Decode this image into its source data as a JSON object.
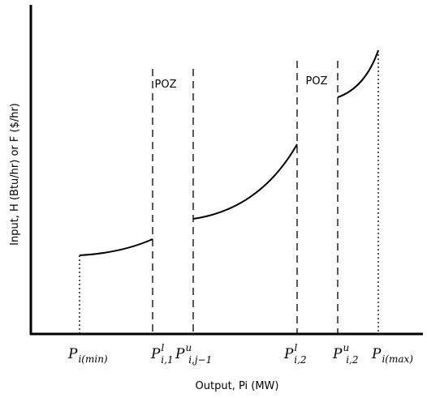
{
  "diagram": {
    "y_axis_label": "Input, H (Btu/hr) or F ($/hr)",
    "x_axis_label": "Output, Pi (MW)",
    "zone_labels": [
      "POZ",
      "POZ"
    ],
    "points": [
      {
        "base": "P",
        "sub": "i(min)"
      },
      {
        "base": "P",
        "sup": "l",
        "sub": "i,1"
      },
      {
        "base": "P",
        "sup": "u",
        "sub": "i,j−1"
      },
      {
        "base": "P",
        "sup": "l",
        "sub": "i,2"
      },
      {
        "base": "P",
        "sup": "u",
        "sub": "i,2"
      },
      {
        "base": "P",
        "sub": "i(max)"
      }
    ]
  }
}
